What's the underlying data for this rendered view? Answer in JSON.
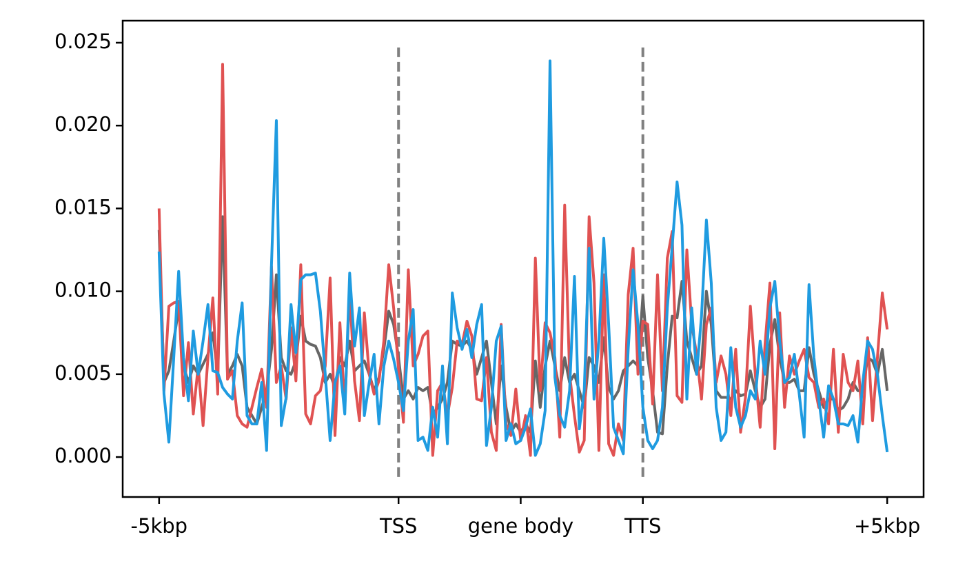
{
  "chart_data": {
    "type": "line",
    "xlim": [
      -7.45,
      156.45
    ],
    "xticks": [
      {
        "value": 0,
        "label": "-5kbp"
      },
      {
        "value": 49,
        "label": "TSS"
      },
      {
        "value": 74,
        "label": "gene body"
      },
      {
        "value": 99,
        "label": "TTS"
      },
      {
        "value": 149,
        "label": "+5kbp"
      }
    ],
    "ylim": [
      -0.00241,
      0.02633
    ],
    "yticks": [
      {
        "value": 0,
        "label": "0.000"
      },
      {
        "value": 0.005,
        "label": "0.005"
      },
      {
        "value": 0.01,
        "label": "0.010"
      },
      {
        "value": 0.015,
        "label": "0.015"
      },
      {
        "value": 0.02,
        "label": "0.020"
      },
      {
        "value": 0.025,
        "label": "0.025"
      }
    ],
    "vlines": {
      "x": [
        49,
        99
      ],
      "ymin": -0.0012,
      "ymax": 0.025,
      "color": "#808080"
    },
    "series": [
      {
        "color": "#666666",
        "values": [
          0.0137,
          0.0045,
          0.0052,
          0.007,
          0.009,
          0.0055,
          0.0045,
          0.0055,
          0.005,
          0.0056,
          0.0062,
          0.0075,
          0.005,
          0.0145,
          0.005,
          0.0055,
          0.0062,
          0.0055,
          0.003,
          0.0025,
          0.002,
          0.003,
          0.004,
          0.0065,
          0.011,
          0.006,
          0.0052,
          0.005,
          0.0058,
          0.0085,
          0.007,
          0.0068,
          0.0067,
          0.006,
          0.0045,
          0.005,
          0.0042,
          0.006,
          0.0055,
          0.007,
          0.0052,
          0.0055,
          0.0058,
          0.005,
          0.004,
          0.0048,
          0.0065,
          0.0088,
          0.008,
          0.006,
          0.0035,
          0.004,
          0.0035,
          0.0042,
          0.004,
          0.0042,
          0.0025,
          0.003,
          0.0035,
          0.0045,
          0.007,
          0.0068,
          0.0067,
          0.007,
          0.0065,
          0.005,
          0.006,
          0.007,
          0.0045,
          0.002,
          0.0055,
          0.003,
          0.0015,
          0.002,
          0.0015,
          0.002,
          0.0015,
          0.0058,
          0.003,
          0.0055,
          0.007,
          0.0055,
          0.004,
          0.006,
          0.0045,
          0.005,
          0.004,
          0.003,
          0.006,
          0.0055,
          0.0045,
          0.0072,
          0.0042,
          0.0035,
          0.004,
          0.0052,
          0.0055,
          0.0058,
          0.0055,
          0.0097,
          0.006,
          0.004,
          0.0015,
          0.0014,
          0.0055,
          0.0085,
          0.0084,
          0.0106,
          0.007,
          0.006,
          0.005,
          0.0055,
          0.01,
          0.008,
          0.004,
          0.0036,
          0.0036,
          0.0035,
          0.004,
          0.0037,
          0.0038,
          0.0052,
          0.004,
          0.003,
          0.0035,
          0.0068,
          0.0083,
          0.006,
          0.0045,
          0.0045,
          0.0047,
          0.004,
          0.004,
          0.0066,
          0.005,
          0.004,
          0.003,
          0.0035,
          0.0035,
          0.0028,
          0.003,
          0.0035,
          0.0045,
          0.004,
          0.004,
          0.006,
          0.0058,
          0.005,
          0.0065,
          0.004
        ]
      },
      {
        "color": "#e05252",
        "values": [
          0.015,
          0.004,
          0.0091,
          0.0093,
          0.0094,
          0.0037,
          0.0069,
          0.0026,
          0.0055,
          0.0019,
          0.006,
          0.0096,
          0.0038,
          0.0237,
          0.0047,
          0.0052,
          0.0025,
          0.002,
          0.0018,
          0.003,
          0.0042,
          0.0053,
          0.003,
          0.0115,
          0.0045,
          0.0055,
          0.0035,
          0.0078,
          0.0046,
          0.0116,
          0.0026,
          0.002,
          0.0037,
          0.004,
          0.0055,
          0.0108,
          0.0013,
          0.0081,
          0.003,
          0.01,
          0.0046,
          0.0022,
          0.0087,
          0.005,
          0.0038,
          0.0046,
          0.007,
          0.0116,
          0.009,
          0.0053,
          0.0021,
          0.0113,
          0.0055,
          0.0062,
          0.0073,
          0.0076,
          0.0001,
          0.004,
          0.0045,
          0.0025,
          0.0042,
          0.007,
          0.0068,
          0.0082,
          0.0073,
          0.0035,
          0.0034,
          0.006,
          0.0015,
          0.0004,
          0.008,
          0.002,
          0.0013,
          0.0041,
          0.001,
          0.0025,
          0.0001,
          0.012,
          0.004,
          0.0081,
          0.0075,
          0.006,
          0.0012,
          0.0152,
          0.005,
          0.0025,
          0.0003,
          0.001,
          0.0145,
          0.0105,
          0.0004,
          0.011,
          0.0008,
          0.0001,
          0.002,
          0.001,
          0.0098,
          0.0126,
          0.005,
          0.0082,
          0.008,
          0.0032,
          0.011,
          0.004,
          0.012,
          0.0136,
          0.0037,
          0.0033,
          0.0125,
          0.008,
          0.0062,
          0.0035,
          0.008,
          0.009,
          0.0045,
          0.0061,
          0.005,
          0.0025,
          0.0065,
          0.0015,
          0.0036,
          0.0091,
          0.005,
          0.0018,
          0.0068,
          0.0105,
          0.0005,
          0.0087,
          0.003,
          0.0061,
          0.005,
          0.0058,
          0.0065,
          0.0048,
          0.0045,
          0.003,
          0.0035,
          0.002,
          0.0065,
          0.0015,
          0.0062,
          0.0045,
          0.004,
          0.0058,
          0.002,
          0.0072,
          0.0022,
          0.006,
          0.0099,
          0.0077
        ]
      },
      {
        "color": "#1f9be0",
        "values": [
          0.0124,
          0.0038,
          0.0009,
          0.006,
          0.0112,
          0.006,
          0.0034,
          0.0076,
          0.005,
          0.007,
          0.0092,
          0.0052,
          0.0051,
          0.0042,
          0.0038,
          0.0035,
          0.007,
          0.0093,
          0.0025,
          0.002,
          0.002,
          0.0045,
          0.0004,
          0.0116,
          0.0203,
          0.0019,
          0.0036,
          0.0092,
          0.0063,
          0.0107,
          0.011,
          0.011,
          0.0111,
          0.0088,
          0.005,
          0.001,
          0.0045,
          0.0055,
          0.0026,
          0.0111,
          0.0067,
          0.009,
          0.0025,
          0.0045,
          0.0062,
          0.002,
          0.0055,
          0.007,
          0.0059,
          0.0045,
          0.0028,
          0.007,
          0.0089,
          0.001,
          0.0012,
          0.0004,
          0.003,
          0.0012,
          0.0055,
          0.0008,
          0.0099,
          0.0078,
          0.0065,
          0.0077,
          0.006,
          0.008,
          0.0092,
          0.0007,
          0.003,
          0.007,
          0.0079,
          0.001,
          0.002,
          0.0008,
          0.001,
          0.0018,
          0.0029,
          0.0001,
          0.0008,
          0.0028,
          0.0239,
          0.0048,
          0.0025,
          0.0018,
          0.004,
          0.0109,
          0.0017,
          0.004,
          0.0126,
          0.0035,
          0.007,
          0.0132,
          0.008,
          0.0018,
          0.001,
          0.0002,
          0.0065,
          0.0113,
          0.008,
          0.003,
          0.001,
          0.0005,
          0.001,
          0.003,
          0.009,
          0.0127,
          0.0166,
          0.014,
          0.0035,
          0.009,
          0.005,
          0.0085,
          0.0143,
          0.0105,
          0.003,
          0.001,
          0.0015,
          0.0066,
          0.003,
          0.0018,
          0.0025,
          0.004,
          0.0035,
          0.007,
          0.005,
          0.009,
          0.0106,
          0.007,
          0.0045,
          0.0048,
          0.0062,
          0.0038,
          0.0012,
          0.0104,
          0.006,
          0.0035,
          0.0012,
          0.0043,
          0.0035,
          0.002,
          0.002,
          0.0019,
          0.0025,
          0.0009,
          0.0045,
          0.007,
          0.0065,
          0.005,
          0.0025,
          0.0003
        ]
      }
    ]
  }
}
